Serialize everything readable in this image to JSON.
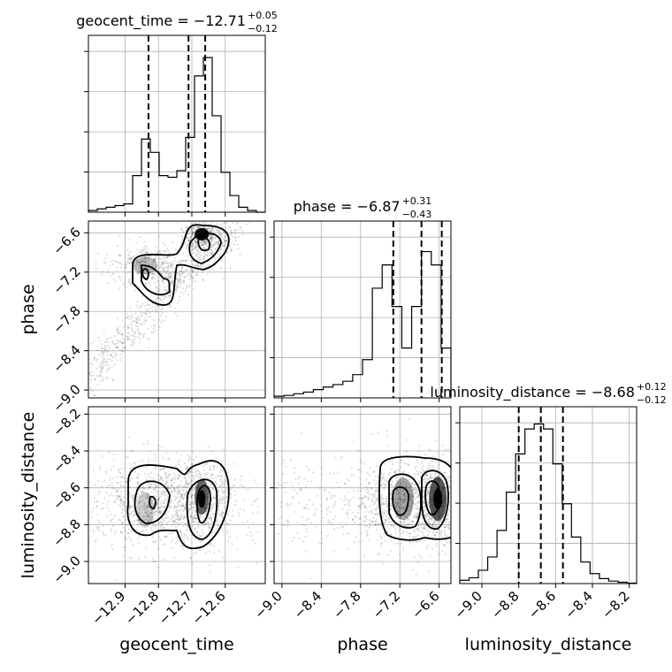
{
  "chart_data": {
    "type": "corner",
    "parameters": [
      "geocent_time",
      "phase",
      "luminosity_distance"
    ],
    "titles": [
      {
        "param": "geocent_time",
        "prefix": "geocent_time = ",
        "median": "−12.71",
        "plus": "+0.05",
        "minus": "−0.12"
      },
      {
        "param": "phase",
        "prefix": "phase = ",
        "median": "−6.87",
        "plus": "+0.31",
        "minus": "−0.43"
      },
      {
        "param": "luminosity_distance",
        "prefix": "luminosity_distance = ",
        "median": "−8.68",
        "plus": "+0.12",
        "minus": "−0.12"
      }
    ],
    "ranges": {
      "geocent_time": [
        -13.01,
        -12.48
      ],
      "phase": [
        -9.12,
        -6.42
      ],
      "luminosity_distance": [
        -9.12,
        -8.16
      ]
    },
    "ticks": {
      "geocent_time": [
        -12.9,
        -12.8,
        -12.7,
        -12.6
      ],
      "phase": [
        -9.0,
        -8.4,
        -7.8,
        -7.2,
        -6.6
      ],
      "luminosity_distance": [
        -9.0,
        -8.8,
        -8.6,
        -8.4,
        -8.2
      ]
    },
    "tick_labels": {
      "geocent_time": [
        "−12.9",
        "−12.8",
        "−12.7",
        "−12.6"
      ],
      "phase": [
        "−9.0",
        "−8.4",
        "−7.8",
        "−7.2",
        "−6.6"
      ],
      "luminosity_distance": [
        "−9.0",
        "−8.8",
        "−8.6",
        "−8.4",
        "−8.2"
      ]
    },
    "quantiles": {
      "geocent_time": [
        -12.83,
        -12.71,
        -12.66
      ],
      "phase": [
        -7.3,
        -6.87,
        -6.56
      ],
      "luminosity_distance": [
        -8.8,
        -8.68,
        -8.56
      ]
    },
    "histograms": {
      "geocent_time": [
        0.01,
        0.02,
        0.03,
        0.04,
        0.05,
        0.22,
        0.44,
        0.36,
        0.22,
        0.21,
        0.25,
        0.45,
        0.82,
        0.93,
        0.58,
        0.24,
        0.1,
        0.03,
        0.01,
        0.0
      ],
      "phase": [
        0.01,
        0.015,
        0.025,
        0.035,
        0.05,
        0.065,
        0.08,
        0.1,
        0.14,
        0.23,
        0.66,
        0.8,
        0.55,
        0.3,
        0.55,
        0.88,
        0.8,
        0.3
      ],
      "luminosity_distance": [
        0.02,
        0.035,
        0.08,
        0.16,
        0.32,
        0.55,
        0.78,
        0.93,
        0.96,
        0.93,
        0.72,
        0.48,
        0.28,
        0.13,
        0.06,
        0.03,
        0.015,
        0.008,
        0.003
      ]
    },
    "contour_levels": [
      0.5,
      1.0,
      1.5
    ],
    "grid": true
  }
}
